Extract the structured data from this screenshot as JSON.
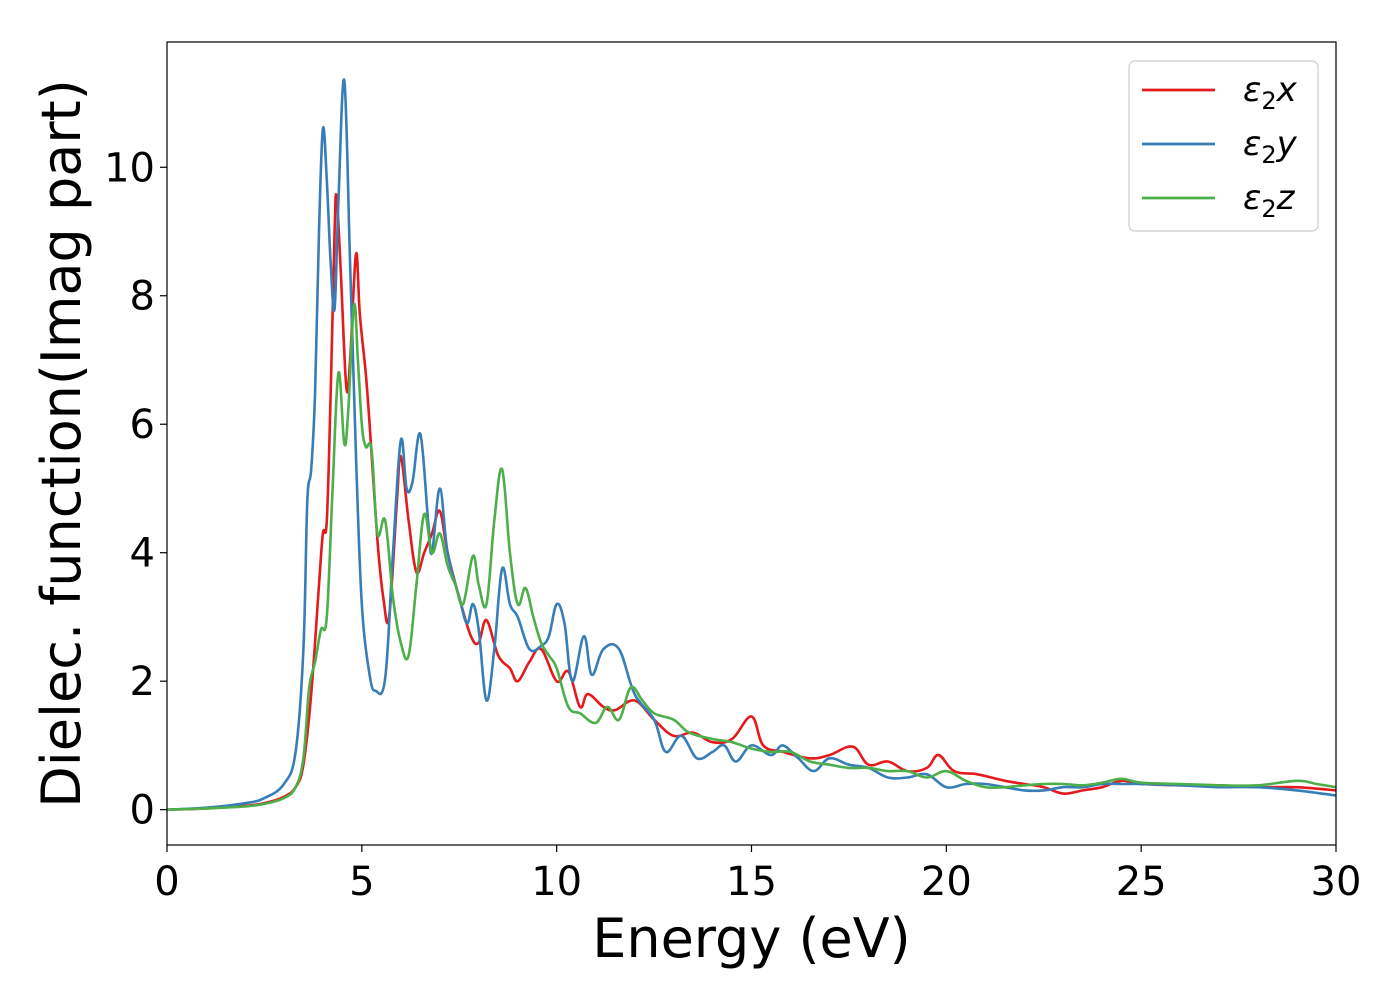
{
  "chart_data": {
    "type": "line",
    "xlabel": "Energy (eV)",
    "ylabel": "Dielec. function(Imag part)",
    "xlim": [
      0,
      30
    ],
    "ylim": [
      -0.55,
      11.95
    ],
    "xticks": [
      0,
      5,
      10,
      15,
      20,
      25,
      30
    ],
    "yticks": [
      0,
      2,
      4,
      6,
      8,
      10
    ],
    "grid": false,
    "legend_position": "top-right",
    "series": [
      {
        "name": "ε2x",
        "legend_base": "ε",
        "legend_sub": "2",
        "legend_var": "x",
        "color": "#e41a1c",
        "points": [
          [
            0,
            0
          ],
          [
            1,
            0.02
          ],
          [
            2,
            0.06
          ],
          [
            2.5,
            0.1
          ],
          [
            3,
            0.2
          ],
          [
            3.3,
            0.35
          ],
          [
            3.5,
            0.7
          ],
          [
            3.7,
            1.8
          ],
          [
            3.9,
            3.5
          ],
          [
            4.0,
            4.3
          ],
          [
            4.1,
            4.5
          ],
          [
            4.2,
            6.5
          ],
          [
            4.3,
            9.0
          ],
          [
            4.35,
            9.55
          ],
          [
            4.45,
            8.5
          ],
          [
            4.6,
            6.6
          ],
          [
            4.7,
            7.0
          ],
          [
            4.85,
            8.65
          ],
          [
            4.95,
            7.7
          ],
          [
            5.1,
            6.8
          ],
          [
            5.2,
            6.0
          ],
          [
            5.4,
            4.2
          ],
          [
            5.55,
            3.3
          ],
          [
            5.7,
            3.0
          ],
          [
            5.9,
            4.8
          ],
          [
            6.0,
            5.5
          ],
          [
            6.2,
            4.5
          ],
          [
            6.4,
            3.7
          ],
          [
            6.6,
            4.0
          ],
          [
            6.8,
            4.3
          ],
          [
            7.0,
            4.65
          ],
          [
            7.2,
            4.0
          ],
          [
            7.5,
            3.3
          ],
          [
            7.8,
            2.7
          ],
          [
            8.0,
            2.6
          ],
          [
            8.2,
            2.95
          ],
          [
            8.5,
            2.4
          ],
          [
            8.8,
            2.2
          ],
          [
            9.0,
            2.0
          ],
          [
            9.3,
            2.3
          ],
          [
            9.6,
            2.5
          ],
          [
            10.0,
            2.0
          ],
          [
            10.3,
            2.15
          ],
          [
            10.6,
            1.6
          ],
          [
            10.8,
            1.8
          ],
          [
            11.2,
            1.6
          ],
          [
            11.5,
            1.55
          ],
          [
            12.0,
            1.7
          ],
          [
            12.5,
            1.4
          ],
          [
            13.0,
            1.15
          ],
          [
            13.5,
            1.2
          ],
          [
            14.0,
            1.05
          ],
          [
            14.5,
            1.1
          ],
          [
            15.0,
            1.45
          ],
          [
            15.3,
            1.0
          ],
          [
            15.8,
            0.9
          ],
          [
            16.5,
            0.8
          ],
          [
            17.0,
            0.85
          ],
          [
            17.6,
            0.98
          ],
          [
            18.0,
            0.7
          ],
          [
            18.5,
            0.75
          ],
          [
            19.0,
            0.6
          ],
          [
            19.5,
            0.65
          ],
          [
            19.8,
            0.85
          ],
          [
            20.2,
            0.6
          ],
          [
            20.8,
            0.55
          ],
          [
            21.5,
            0.45
          ],
          [
            22.0,
            0.4
          ],
          [
            22.5,
            0.35
          ],
          [
            23.0,
            0.25
          ],
          [
            23.5,
            0.3
          ],
          [
            24.0,
            0.35
          ],
          [
            24.5,
            0.45
          ],
          [
            25.0,
            0.4
          ],
          [
            26.0,
            0.38
          ],
          [
            27.0,
            0.38
          ],
          [
            28.0,
            0.35
          ],
          [
            29.0,
            0.35
          ],
          [
            30.0,
            0.3
          ]
        ]
      },
      {
        "name": "ε2y",
        "legend_base": "ε",
        "legend_sub": "2",
        "legend_var": "y",
        "color": "#377eb8",
        "points": [
          [
            0,
            0
          ],
          [
            1,
            0.03
          ],
          [
            2,
            0.1
          ],
          [
            2.5,
            0.18
          ],
          [
            3.0,
            0.4
          ],
          [
            3.3,
            0.9
          ],
          [
            3.5,
            2.5
          ],
          [
            3.6,
            4.8
          ],
          [
            3.7,
            5.3
          ],
          [
            3.8,
            6.5
          ],
          [
            3.9,
            9.0
          ],
          [
            4.0,
            10.6
          ],
          [
            4.1,
            9.8
          ],
          [
            4.2,
            8.5
          ],
          [
            4.3,
            7.8
          ],
          [
            4.4,
            9.5
          ],
          [
            4.55,
            11.35
          ],
          [
            4.7,
            8.5
          ],
          [
            4.85,
            5.5
          ],
          [
            5.0,
            3.2
          ],
          [
            5.2,
            2.1
          ],
          [
            5.35,
            1.85
          ],
          [
            5.6,
            2.05
          ],
          [
            5.8,
            4.0
          ],
          [
            6.0,
            5.75
          ],
          [
            6.15,
            5.0
          ],
          [
            6.3,
            5.1
          ],
          [
            6.5,
            5.85
          ],
          [
            6.7,
            4.5
          ],
          [
            6.8,
            4.0
          ],
          [
            7.0,
            5.0
          ],
          [
            7.2,
            4.0
          ],
          [
            7.5,
            3.3
          ],
          [
            7.7,
            2.9
          ],
          [
            7.85,
            3.2
          ],
          [
            8.0,
            2.8
          ],
          [
            8.2,
            1.7
          ],
          [
            8.4,
            2.5
          ],
          [
            8.6,
            3.75
          ],
          [
            8.8,
            3.2
          ],
          [
            9.0,
            3.0
          ],
          [
            9.3,
            2.5
          ],
          [
            9.6,
            2.55
          ],
          [
            9.8,
            2.7
          ],
          [
            10.0,
            3.2
          ],
          [
            10.2,
            2.9
          ],
          [
            10.4,
            2.0
          ],
          [
            10.7,
            2.7
          ],
          [
            10.9,
            2.1
          ],
          [
            11.2,
            2.5
          ],
          [
            11.6,
            2.5
          ],
          [
            12.0,
            1.8
          ],
          [
            12.5,
            1.4
          ],
          [
            12.8,
            0.9
          ],
          [
            13.2,
            1.15
          ],
          [
            13.6,
            0.8
          ],
          [
            14.0,
            0.9
          ],
          [
            14.3,
            1.0
          ],
          [
            14.6,
            0.75
          ],
          [
            15.0,
            1.0
          ],
          [
            15.5,
            0.85
          ],
          [
            15.8,
            1.0
          ],
          [
            16.2,
            0.8
          ],
          [
            16.6,
            0.6
          ],
          [
            17.0,
            0.8
          ],
          [
            17.5,
            0.7
          ],
          [
            18.0,
            0.65
          ],
          [
            18.5,
            0.5
          ],
          [
            19.0,
            0.5
          ],
          [
            19.5,
            0.55
          ],
          [
            20.0,
            0.35
          ],
          [
            20.5,
            0.4
          ],
          [
            21.0,
            0.4
          ],
          [
            21.5,
            0.35
          ],
          [
            22.0,
            0.3
          ],
          [
            22.5,
            0.3
          ],
          [
            23.0,
            0.35
          ],
          [
            23.5,
            0.35
          ],
          [
            24.0,
            0.4
          ],
          [
            24.5,
            0.4
          ],
          [
            25.0,
            0.4
          ],
          [
            26.0,
            0.38
          ],
          [
            27.0,
            0.35
          ],
          [
            28.0,
            0.35
          ],
          [
            29.0,
            0.3
          ],
          [
            30.0,
            0.22
          ]
        ]
      },
      {
        "name": "ε2z",
        "legend_base": "ε",
        "legend_sub": "2",
        "legend_var": "z",
        "color": "#4daf4a",
        "points": [
          [
            0,
            0
          ],
          [
            1,
            0.02
          ],
          [
            2,
            0.05
          ],
          [
            2.5,
            0.09
          ],
          [
            3.0,
            0.18
          ],
          [
            3.3,
            0.35
          ],
          [
            3.5,
            0.8
          ],
          [
            3.65,
            1.9
          ],
          [
            3.8,
            2.3
          ],
          [
            3.95,
            2.8
          ],
          [
            4.1,
            3.0
          ],
          [
            4.25,
            5.0
          ],
          [
            4.4,
            6.8
          ],
          [
            4.55,
            5.7
          ],
          [
            4.65,
            6.2
          ],
          [
            4.8,
            7.85
          ],
          [
            4.9,
            7.0
          ],
          [
            5.0,
            6.0
          ],
          [
            5.1,
            5.65
          ],
          [
            5.25,
            5.6
          ],
          [
            5.4,
            4.3
          ],
          [
            5.6,
            4.5
          ],
          [
            5.8,
            3.3
          ],
          [
            6.0,
            2.6
          ],
          [
            6.2,
            2.4
          ],
          [
            6.4,
            3.5
          ],
          [
            6.6,
            4.6
          ],
          [
            6.8,
            4.0
          ],
          [
            7.0,
            4.3
          ],
          [
            7.2,
            3.8
          ],
          [
            7.4,
            3.5
          ],
          [
            7.6,
            3.2
          ],
          [
            7.85,
            3.95
          ],
          [
            8.0,
            3.5
          ],
          [
            8.2,
            3.2
          ],
          [
            8.4,
            4.5
          ],
          [
            8.6,
            5.3
          ],
          [
            8.8,
            4.0
          ],
          [
            9.0,
            3.2
          ],
          [
            9.2,
            3.45
          ],
          [
            9.4,
            3.0
          ],
          [
            9.6,
            2.6
          ],
          [
            9.8,
            2.4
          ],
          [
            10.0,
            2.2
          ],
          [
            10.3,
            1.6
          ],
          [
            10.6,
            1.5
          ],
          [
            11.0,
            1.35
          ],
          [
            11.3,
            1.6
          ],
          [
            11.6,
            1.4
          ],
          [
            11.9,
            1.9
          ],
          [
            12.2,
            1.7
          ],
          [
            12.5,
            1.5
          ],
          [
            13.0,
            1.4
          ],
          [
            13.4,
            1.2
          ],
          [
            14.0,
            1.1
          ],
          [
            14.5,
            1.05
          ],
          [
            15.0,
            0.95
          ],
          [
            15.5,
            0.9
          ],
          [
            16.0,
            0.9
          ],
          [
            16.5,
            0.75
          ],
          [
            17.0,
            0.7
          ],
          [
            17.5,
            0.65
          ],
          [
            18.0,
            0.65
          ],
          [
            18.5,
            0.6
          ],
          [
            19.0,
            0.6
          ],
          [
            19.5,
            0.5
          ],
          [
            20.0,
            0.6
          ],
          [
            20.5,
            0.45
          ],
          [
            21.0,
            0.35
          ],
          [
            21.5,
            0.35
          ],
          [
            22.0,
            0.38
          ],
          [
            22.5,
            0.4
          ],
          [
            23.0,
            0.4
          ],
          [
            23.5,
            0.38
          ],
          [
            24.0,
            0.42
          ],
          [
            24.5,
            0.48
          ],
          [
            25.0,
            0.42
          ],
          [
            26.0,
            0.4
          ],
          [
            27.0,
            0.38
          ],
          [
            28.0,
            0.38
          ],
          [
            29.0,
            0.45
          ],
          [
            29.5,
            0.4
          ],
          [
            30.0,
            0.35
          ]
        ]
      }
    ]
  }
}
